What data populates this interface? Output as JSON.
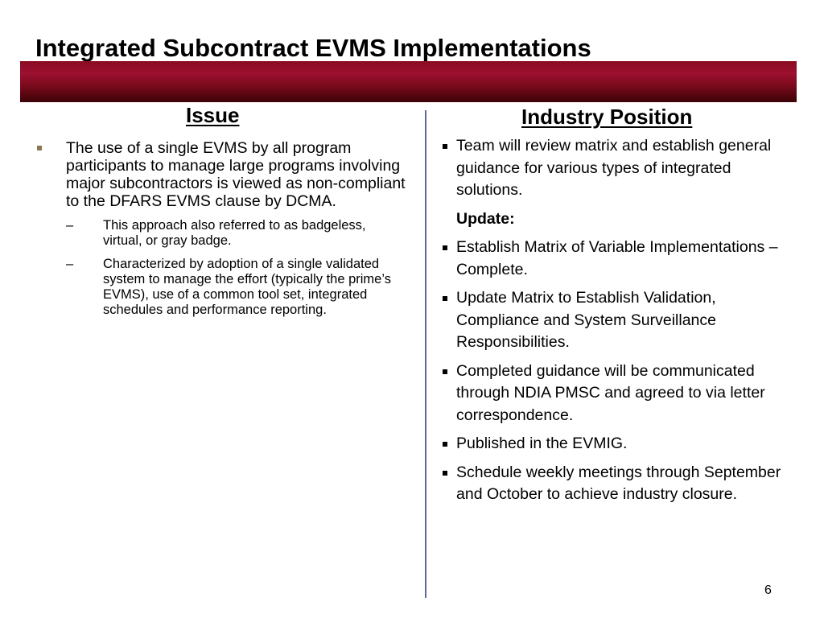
{
  "title": "Integrated Subcontract EVMS Implementations",
  "issue": {
    "heading": "Issue",
    "bullet": "The use of a single EVMS by all program participants to manage large programs involving major subcontractors is viewed as non-compliant to the DFARS EVMS clause by DCMA.",
    "dash": "–",
    "sub_items": [
      "This approach also referred to as badgeless, virtual, or gray badge.",
      "Characterized by adoption of a single validated system to manage the effort (typically the prime’s EVMS), use of a common tool set, integrated schedules and performance reporting."
    ]
  },
  "industry_position": {
    "heading": "Industry Position",
    "item1": "Team will review matrix and establish general guidance for various types of integrated solutions.",
    "update_label": "Update:",
    "items": [
      " Establish Matrix of Variable Implementations – Complete.",
      "Update Matrix to Establish Validation, Compliance and System Surveillance Responsibilities.",
      "Completed guidance will be communicated through NDIA PMSC and agreed to via letter correspondence.",
      " Published in the EVMIG.",
      "Schedule weekly meetings through September and October to achieve industry closure."
    ]
  },
  "page_number": "6",
  "colors": {
    "title_bar": "#8a0b22",
    "divider": "#5b6aa0",
    "left_bullet": "#8b7755"
  }
}
